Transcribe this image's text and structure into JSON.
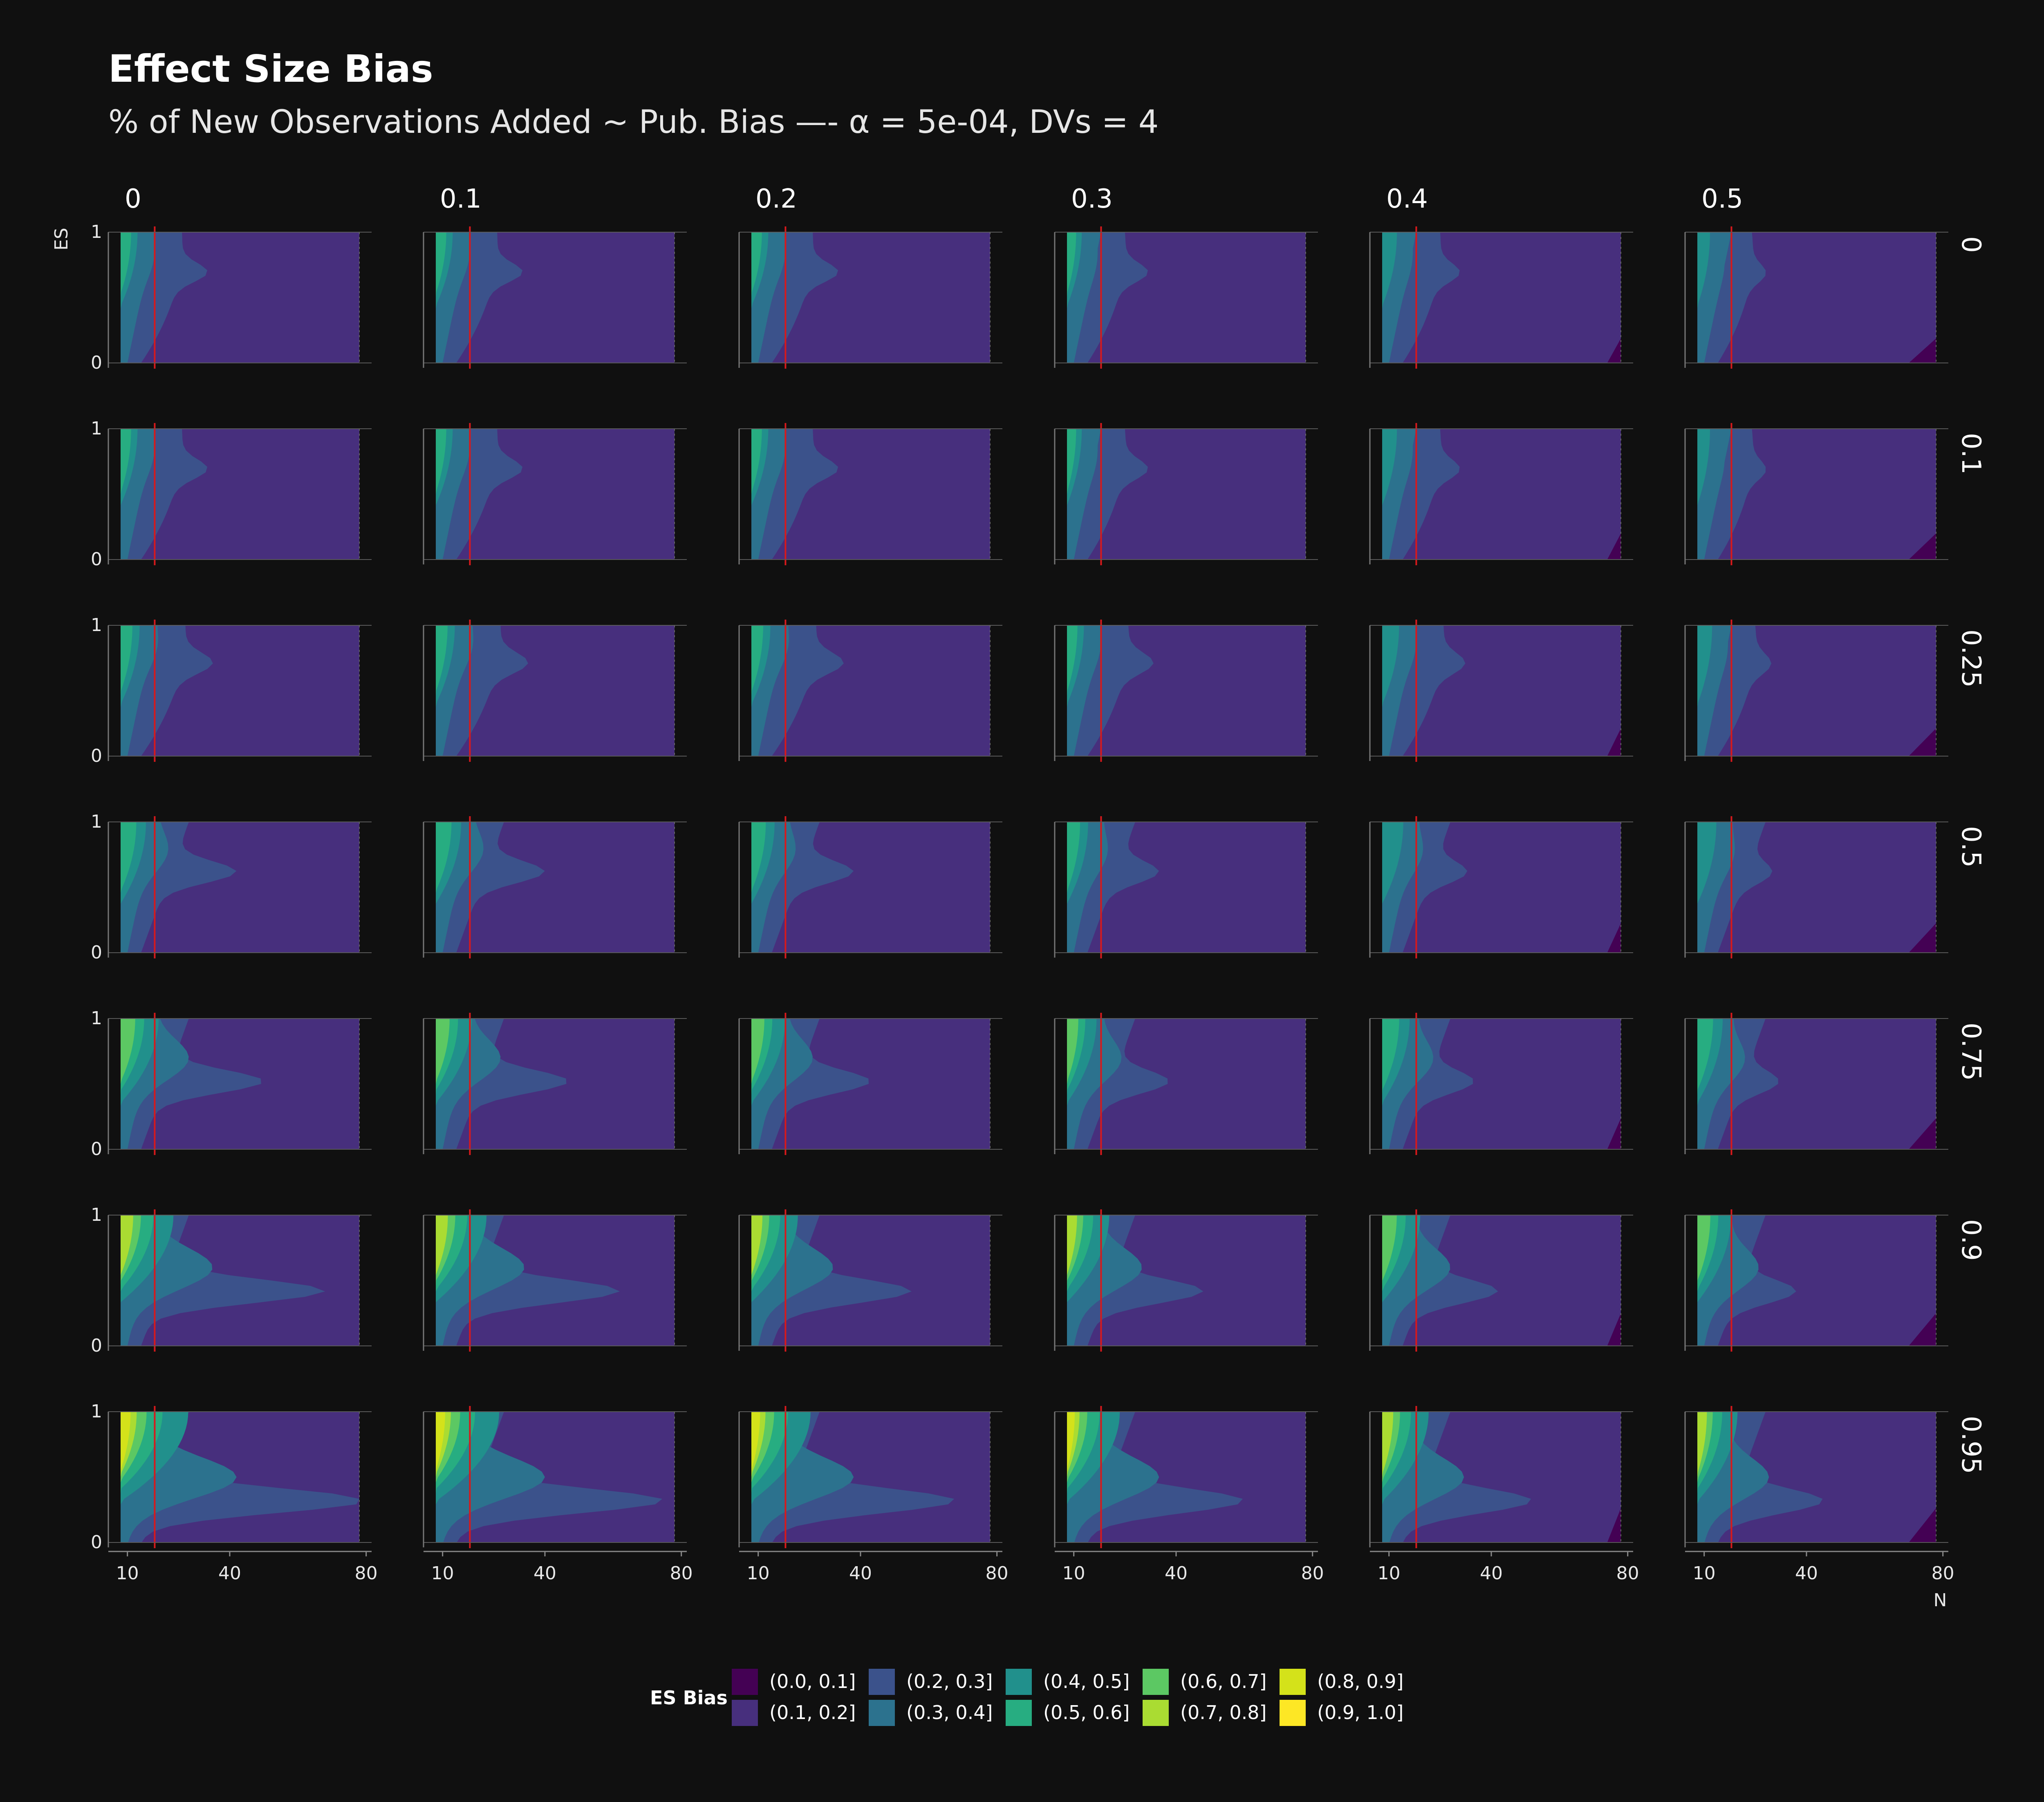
{
  "chart_data": {
    "type": "heatmap",
    "title": "Effect Size Bias",
    "subtitle": "% of New Observations Added ~ Pub. Bias —- α = 5e-04, DVs = 4",
    "xlabel": "N",
    "ylabel": "ES",
    "x_ticks": [
      10,
      40,
      80
    ],
    "y_ticks": [
      0,
      1
    ],
    "xlim": [
      8,
      78
    ],
    "ylim": [
      0,
      1
    ],
    "reference_line_x": 18,
    "reference_line_color": "#d7191c",
    "facet_columns_label": "% of New Observations Added",
    "facet_columns": [
      "0",
      "0.1",
      "0.2",
      "0.3",
      "0.4",
      "0.5"
    ],
    "facet_rows_label": "Pub. Bias",
    "facet_rows": [
      "0",
      "0.1",
      "0.25",
      "0.5",
      "0.75",
      "0.9",
      "0.95"
    ],
    "fill_name": "ES Bias",
    "legend_placement": "bottom",
    "fill_bins": [
      {
        "label": "(0.0, 0.1]",
        "color": "#440154"
      },
      {
        "label": "(0.1, 0.2]",
        "color": "#472f7d"
      },
      {
        "label": "(0.2, 0.3]",
        "color": "#3b528b"
      },
      {
        "label": "(0.3, 0.4]",
        "color": "#2c728e"
      },
      {
        "label": "(0.4, 0.5]",
        "color": "#21908c"
      },
      {
        "label": "(0.5, 0.6]",
        "color": "#27ad81"
      },
      {
        "label": "(0.6, 0.7]",
        "color": "#5cc863"
      },
      {
        "label": "(0.7, 0.8]",
        "color": "#aadc32"
      },
      {
        "label": "(0.8, 0.9]",
        "color": "#d4e21a"
      },
      {
        "label": "(0.9, 1.0]",
        "color": "#fde725"
      }
    ],
    "contour_bands_n_boundary": {
      "row_peak_es": [
        0.7,
        0.7,
        0.72,
        0.62,
        0.52,
        0.42,
        0.32
      ],
      "bin_0_1_max_n_by_column": [
        null,
        null,
        null,
        null,
        74,
        70
      ],
      "bin_1_2_min_n_by_row_column": [
        [
          32,
          32,
          32,
          31,
          30,
          28
        ],
        [
          32,
          32,
          32,
          31,
          30,
          28
        ],
        [
          33,
          33,
          33,
          32,
          31,
          29
        ],
        [
          42,
          40,
          38,
          35,
          33,
          30
        ],
        [
          50,
          47,
          43,
          38,
          35,
          32
        ],
        [
          68,
          62,
          55,
          48,
          42,
          37
        ],
        [
          80,
          75,
          68,
          60,
          52,
          45
        ]
      ],
      "bin_2_3_min_n_by_row_column": [
        [
          18,
          18,
          18,
          17,
          17,
          16
        ],
        [
          18,
          18,
          18,
          17,
          17,
          16
        ],
        [
          19,
          19,
          19,
          18,
          18,
          17
        ],
        [
          22,
          22,
          21,
          20,
          20,
          19
        ],
        [
          28,
          27,
          26,
          24,
          23,
          22
        ],
        [
          35,
          34,
          32,
          30,
          28,
          26
        ],
        [
          42,
          40,
          38,
          35,
          32,
          29
        ]
      ],
      "max_bin_index_by_row": [
        5,
        5,
        5,
        5,
        6,
        7,
        8
      ]
    }
  }
}
